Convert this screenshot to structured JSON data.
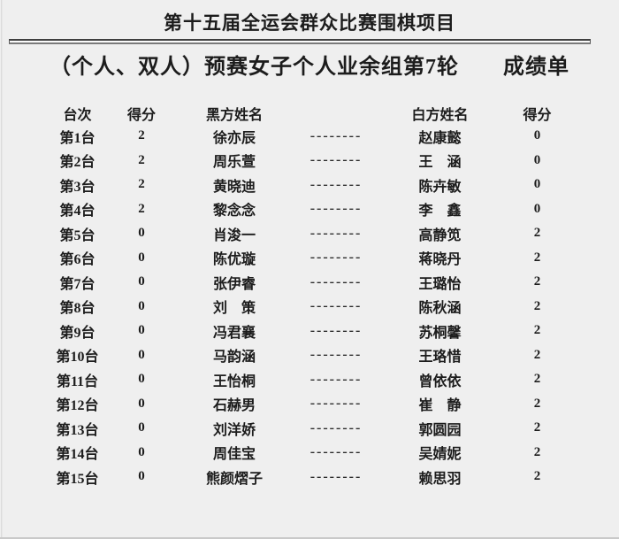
{
  "document": {
    "title": "第十五届全运会群众比赛围棋项目",
    "subtitle": "（个人、双人）预赛女子个人业余组第7轮　　成绩单"
  },
  "table": {
    "headers": {
      "board": "台次",
      "black_score": "得分",
      "black_name": "黑方姓名",
      "gap": "",
      "white_name": "白方姓名",
      "white_score": "得分"
    },
    "separator": "--------",
    "rows": [
      {
        "board": "第1台",
        "black_score": "2",
        "black_name": "徐亦辰",
        "white_name": "赵康懿",
        "white_score": "0"
      },
      {
        "board": "第2台",
        "black_score": "2",
        "black_name": "周乐萱",
        "white_name": "王　涵",
        "white_score": "0"
      },
      {
        "board": "第3台",
        "black_score": "2",
        "black_name": "黄晓迪",
        "white_name": "陈卉敏",
        "white_score": "0"
      },
      {
        "board": "第4台",
        "black_score": "2",
        "black_name": "黎念念",
        "white_name": "李　鑫",
        "white_score": "0"
      },
      {
        "board": "第5台",
        "black_score": "0",
        "black_name": "肖浚一",
        "white_name": "高静笕",
        "white_score": "2"
      },
      {
        "board": "第6台",
        "black_score": "0",
        "black_name": "陈优璇",
        "white_name": "蒋晓丹",
        "white_score": "2"
      },
      {
        "board": "第7台",
        "black_score": "0",
        "black_name": "张伊睿",
        "white_name": "王璐怡",
        "white_score": "2"
      },
      {
        "board": "第8台",
        "black_score": "0",
        "black_name": "刘　策",
        "white_name": "陈秋涵",
        "white_score": "2"
      },
      {
        "board": "第9台",
        "black_score": "0",
        "black_name": "冯君襄",
        "white_name": "苏桐馨",
        "white_score": "2"
      },
      {
        "board": "第10台",
        "black_score": "0",
        "black_name": "马韵涵",
        "white_name": "王珞惜",
        "white_score": "2"
      },
      {
        "board": "第11台",
        "black_score": "0",
        "black_name": "王怡桐",
        "white_name": "曾依依",
        "white_score": "2"
      },
      {
        "board": "第12台",
        "black_score": "0",
        "black_name": "石赫男",
        "white_name": "崔　静",
        "white_score": "2"
      },
      {
        "board": "第13台",
        "black_score": "0",
        "black_name": "刘洋娇",
        "white_name": "郭圆园",
        "white_score": "2"
      },
      {
        "board": "第14台",
        "black_score": "0",
        "black_name": "周佳宝",
        "white_name": "吴婧妮",
        "white_score": "2"
      },
      {
        "board": "第15台",
        "black_score": "0",
        "black_name": "熊颜熠子",
        "white_name": "赖思羽",
        "white_score": "2"
      }
    ]
  },
  "colors": {
    "background": "#efefef",
    "text": "#1c1c1c",
    "rule_dark": "#3f3f3f",
    "rule_gap": "#fafafa",
    "rule_light": "#7a7a7a",
    "edge_line": "#dcdcdc"
  }
}
